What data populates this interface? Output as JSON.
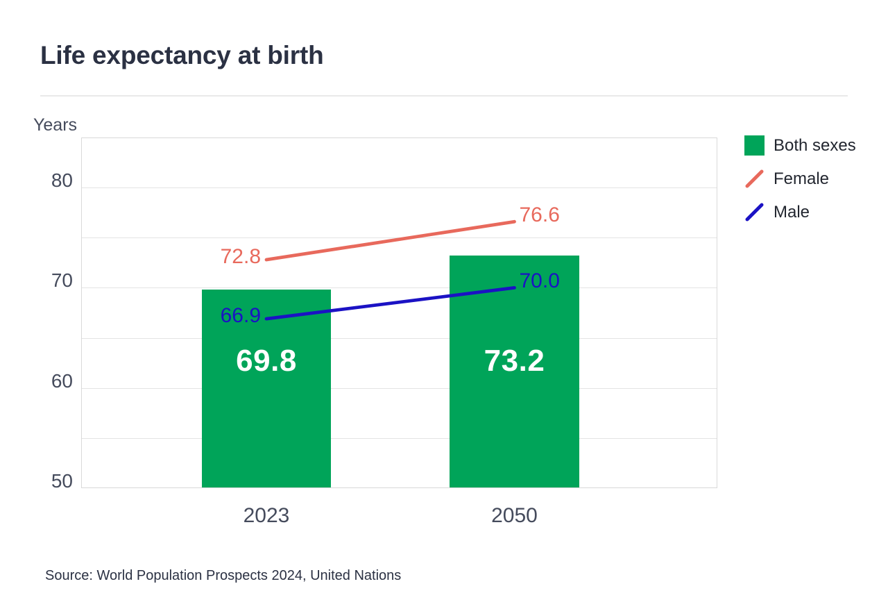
{
  "title": "Life expectancy at birth",
  "source": "Source: World Population Prospects 2024, United Nations",
  "colors": {
    "title_text": "#2b3143",
    "axis_text": "#454b5c",
    "legend_text": "#22262f",
    "source_text": "#2b3143",
    "divider": "#e9e9e9",
    "plot_border": "#d9d9d9",
    "gridline": "#e3e3e3",
    "bar_green": "#00a459",
    "female_coral": "#e8695c",
    "male_blue": "#1b12c4",
    "bar_value_text": "#ffffff"
  },
  "legend": [
    {
      "label": "Both sexes",
      "type": "square",
      "color": "#00a459"
    },
    {
      "label": "Female",
      "type": "line",
      "color": "#e8695c"
    },
    {
      "label": "Male",
      "type": "line",
      "color": "#1b12c4"
    }
  ],
  "chart_data": {
    "type": "bar",
    "title": "Life expectancy at birth",
    "xlabel": "",
    "ylabel": "Years",
    "categories": [
      "2023",
      "2050"
    ],
    "series": [
      {
        "name": "Both sexes",
        "type": "bar",
        "color": "#00a459",
        "values": [
          69.8,
          73.2
        ],
        "labels": [
          "69.8",
          "73.2"
        ]
      },
      {
        "name": "Female",
        "type": "line",
        "color": "#e8695c",
        "values": [
          72.8,
          76.6
        ],
        "labels": [
          "72.8",
          "76.6"
        ]
      },
      {
        "name": "Male",
        "type": "line",
        "color": "#1b12c4",
        "values": [
          66.9,
          70.0
        ],
        "labels": [
          "66.9",
          "70.0"
        ]
      }
    ],
    "ylim": [
      50,
      85
    ],
    "yticks": [
      80,
      70,
      60,
      50
    ],
    "gridlines": [
      80,
      75,
      70,
      65,
      60,
      55
    ],
    "grid": true,
    "legend_position": "right"
  }
}
